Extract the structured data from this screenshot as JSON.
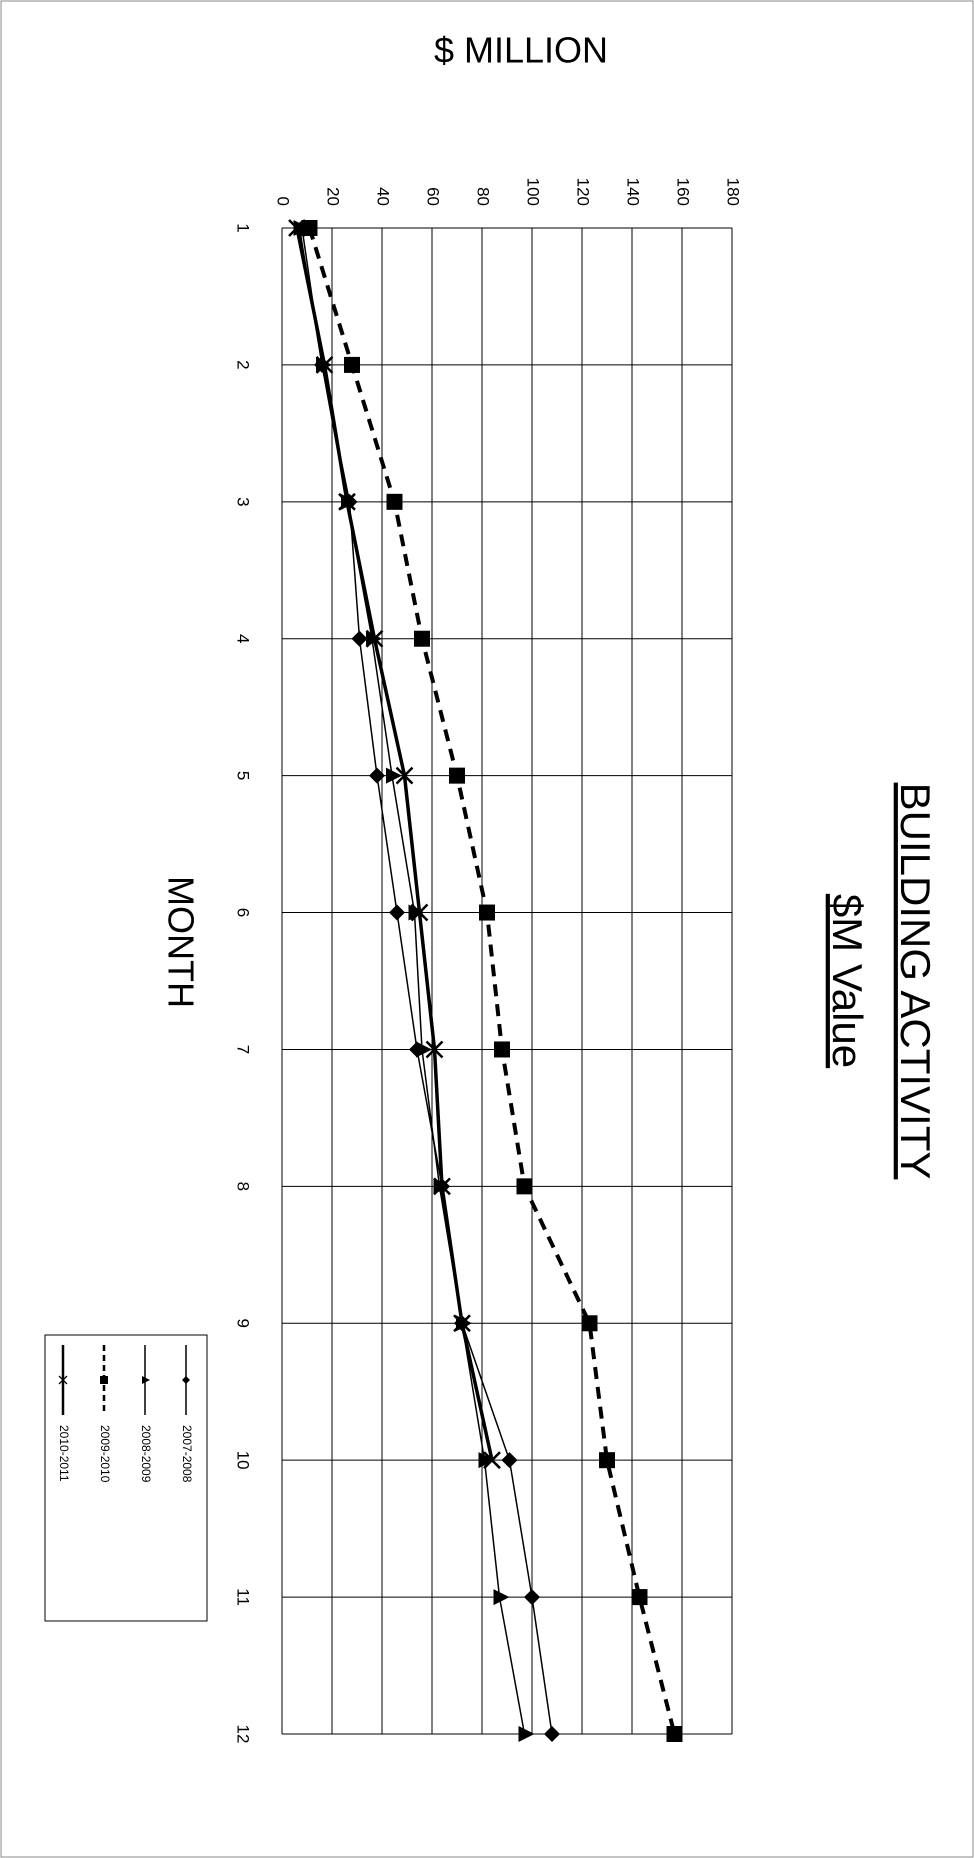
{
  "chart_data": {
    "type": "line",
    "title": "BUILDING ACTIVITY",
    "subtitle": "$M Value",
    "y_label": "$ MILLION",
    "x_label": "MONTH",
    "categories": [
      "1",
      "2",
      "3",
      "4",
      "5",
      "6",
      "7",
      "8",
      "9",
      "10",
      "11",
      "12"
    ],
    "series": [
      {
        "name": "2007-2008",
        "color": "#000000",
        "marker": "diamond",
        "dashed": false,
        "width": 1.5,
        "values": [
          8,
          16,
          27,
          31,
          38,
          46,
          54,
          64,
          72,
          91,
          100,
          108
        ]
      },
      {
        "name": "2008-2009",
        "color": "#000000",
        "marker": "triangle",
        "dashed": false,
        "width": 1.5,
        "values": [
          7,
          16,
          26,
          36,
          44,
          53,
          56,
          63,
          72,
          81,
          87,
          97
        ]
      },
      {
        "name": "2009-2010",
        "color": "#000000",
        "marker": "square",
        "dashed": true,
        "width": 4,
        "values": [
          11,
          28,
          45,
          56,
          70,
          82,
          88,
          97,
          123,
          130,
          143,
          157
        ]
      },
      {
        "name": "2010-2011",
        "color": "#000000",
        "marker": "x",
        "dashed": false,
        "width": 3.5,
        "values": [
          6,
          17,
          26,
          37,
          49,
          55,
          61,
          64,
          72,
          84,
          null,
          null
        ]
      }
    ],
    "ylim": [
      0,
      180
    ],
    "yticks": [
      0,
      20,
      40,
      60,
      80,
      100,
      120,
      140,
      160,
      180
    ],
    "grid": true,
    "legend": "bottom-right",
    "rotation": 90
  }
}
